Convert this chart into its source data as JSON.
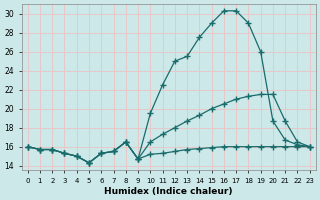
{
  "xlabel": "Humidex (Indice chaleur)",
  "xlim": [
    -0.5,
    23.5
  ],
  "ylim": [
    13.5,
    31.0
  ],
  "yticks": [
    14,
    16,
    18,
    20,
    22,
    24,
    26,
    28,
    30
  ],
  "xticks": [
    0,
    1,
    2,
    3,
    4,
    5,
    6,
    7,
    8,
    9,
    10,
    11,
    12,
    13,
    14,
    15,
    16,
    17,
    18,
    19,
    20,
    21,
    22,
    23
  ],
  "bg_color": "#cce8e8",
  "grid_color": "#e8c8c8",
  "line_color": "#1a6b6b",
  "curve1_x": [
    0,
    1,
    2,
    3,
    4,
    5,
    6,
    7,
    8,
    9,
    10,
    11,
    12,
    13,
    14,
    15,
    16,
    17,
    18,
    19,
    20,
    21,
    22,
    23
  ],
  "curve1_y": [
    16.0,
    15.7,
    15.7,
    15.3,
    15.0,
    14.3,
    15.3,
    15.5,
    16.5,
    14.7,
    15.2,
    15.3,
    15.5,
    15.7,
    15.8,
    15.9,
    16.0,
    16.0,
    16.0,
    16.0,
    16.0,
    16.0,
    16.0,
    16.0
  ],
  "curve2_x": [
    0,
    1,
    2,
    3,
    4,
    5,
    6,
    7,
    8,
    9,
    10,
    11,
    12,
    13,
    14,
    15,
    16,
    17,
    18,
    19,
    20,
    21,
    22,
    23
  ],
  "curve2_y": [
    16.0,
    15.7,
    15.7,
    15.3,
    15.0,
    14.3,
    15.3,
    15.5,
    16.5,
    14.7,
    16.5,
    17.3,
    18.0,
    18.7,
    19.3,
    20.0,
    20.5,
    21.0,
    21.3,
    21.5,
    21.5,
    18.7,
    16.5,
    16.0
  ],
  "curve3_x": [
    0,
    1,
    2,
    3,
    4,
    5,
    6,
    7,
    8,
    9,
    10,
    11,
    12,
    13,
    14,
    15,
    16,
    17,
    18,
    19,
    20,
    21,
    22,
    23
  ],
  "curve3_y": [
    16.0,
    15.7,
    15.7,
    15.3,
    15.0,
    14.3,
    15.3,
    15.5,
    16.5,
    14.7,
    19.5,
    22.5,
    25.0,
    25.5,
    27.5,
    29.0,
    30.3,
    30.3,
    29.0,
    26.0,
    18.7,
    16.7,
    16.2,
    16.0
  ]
}
